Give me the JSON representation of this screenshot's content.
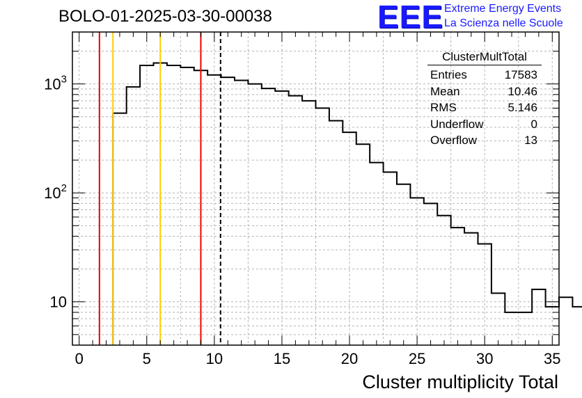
{
  "title": "BOLO-01-2025-03-30-00038",
  "logo": {
    "mark": "EEE",
    "line1": "Extreme Energy Events",
    "line2": "La Scienza nelle Scuole",
    "color": "#1a1aff"
  },
  "stats": {
    "name": "ClusterMultTotal",
    "rows": [
      {
        "label": "Entries",
        "value": "17583"
      },
      {
        "label": "Mean",
        "value": "10.46"
      },
      {
        "label": "RMS",
        "value": "5.146"
      },
      {
        "label": "Underflow",
        "value": "0"
      },
      {
        "label": "Overflow",
        "value": "13"
      }
    ]
  },
  "chart_data": {
    "type": "histogram",
    "xlabel": "Cluster multiplicity Total",
    "ylabel": "",
    "xlim": [
      -0.5,
      35.5
    ],
    "ylim": [
      4,
      3000
    ],
    "yscale": "log",
    "grid": true,
    "xticks": [
      0,
      5,
      10,
      15,
      20,
      25,
      30,
      35
    ],
    "yticks": [
      {
        "value": 10,
        "base": "10",
        "exp": ""
      },
      {
        "value": 100,
        "base": "10",
        "exp": "2"
      },
      {
        "value": 1000,
        "base": "10",
        "exp": "3"
      }
    ],
    "bin_width": 1,
    "bin_start": -0.5,
    "values": [
      0,
      0,
      0,
      540,
      940,
      1480,
      1560,
      1480,
      1420,
      1330,
      1210,
      1150,
      1080,
      1000,
      910,
      860,
      780,
      700,
      600,
      460,
      360,
      280,
      190,
      155,
      120,
      90,
      80,
      62,
      48,
      43,
      34,
      12,
      8,
      8,
      13,
      9,
      11,
      9
    ],
    "line_color": "#000000",
    "vlines": [
      {
        "x": 1.5,
        "color": "#ee0000",
        "style": "solid"
      },
      {
        "x": 2.5,
        "color": "#ffcc00",
        "style": "solid"
      },
      {
        "x": 6.0,
        "color": "#ffcc00",
        "style": "solid"
      },
      {
        "x": 9.0,
        "color": "#ee0000",
        "style": "solid"
      },
      {
        "x": 10.46,
        "color": "#000000",
        "style": "dashed"
      }
    ]
  }
}
